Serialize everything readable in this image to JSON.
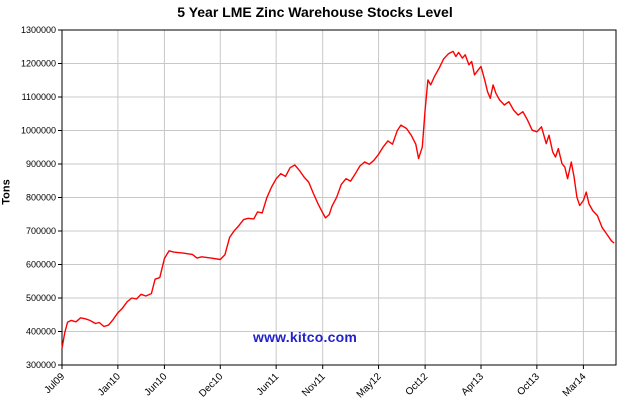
{
  "watermark": {
    "text": "www.kitco.com",
    "color": "#2222cc"
  },
  "chart_data": {
    "type": "line",
    "title": "5 Year LME Zinc Warehouse Stocks Level",
    "xlabel": "",
    "ylabel": "Tons",
    "ylim": [
      300000,
      1300000
    ],
    "y_ticks": [
      300000,
      400000,
      500000,
      600000,
      700000,
      800000,
      900000,
      1000000,
      1100000,
      1200000,
      1300000
    ],
    "x_domain": [
      0,
      59.5
    ],
    "x_note": "x = months since Jul 2009",
    "x_ticks": [
      {
        "pos": 0,
        "label": "Jul09"
      },
      {
        "pos": 6,
        "label": "Jan10"
      },
      {
        "pos": 11,
        "label": "Jun10"
      },
      {
        "pos": 17,
        "label": "Dec10"
      },
      {
        "pos": 23,
        "label": "Jun11"
      },
      {
        "pos": 28,
        "label": "Nov11"
      },
      {
        "pos": 34,
        "label": "May12"
      },
      {
        "pos": 39,
        "label": "Oct12"
      },
      {
        "pos": 45,
        "label": "Apr13"
      },
      {
        "pos": 51,
        "label": "Oct13"
      },
      {
        "pos": 56,
        "label": "Mar14"
      }
    ],
    "grid": true,
    "grid_color": "#c8c8c8",
    "line_color": "#ff0000",
    "legend": "none",
    "series": [
      {
        "name": "LME Zinc Warehouse Stocks (tons)",
        "points": [
          [
            0,
            350000
          ],
          [
            0.3,
            397000
          ],
          [
            0.6,
            428000
          ],
          [
            1,
            433000
          ],
          [
            1.5,
            429000
          ],
          [
            2,
            441000
          ],
          [
            2.5,
            438000
          ],
          [
            3,
            433000
          ],
          [
            3.6,
            424000
          ],
          [
            4,
            427000
          ],
          [
            4.5,
            415000
          ],
          [
            5,
            419000
          ],
          [
            5.5,
            436000
          ],
          [
            6,
            456000
          ],
          [
            6.5,
            470000
          ],
          [
            7,
            489000
          ],
          [
            7.5,
            500000
          ],
          [
            8,
            497000
          ],
          [
            8.5,
            511000
          ],
          [
            9,
            506000
          ],
          [
            9.6,
            513000
          ],
          [
            10,
            556000
          ],
          [
            10.5,
            561000
          ],
          [
            11,
            618000
          ],
          [
            11.5,
            641000
          ],
          [
            12,
            637000
          ],
          [
            13,
            634000
          ],
          [
            14,
            630000
          ],
          [
            14.5,
            619000
          ],
          [
            15,
            623000
          ],
          [
            16,
            619000
          ],
          [
            17,
            615000
          ],
          [
            17.5,
            629000
          ],
          [
            18,
            681000
          ],
          [
            18.5,
            701000
          ],
          [
            19,
            716000
          ],
          [
            19.5,
            734000
          ],
          [
            20,
            738000
          ],
          [
            20.6,
            736000
          ],
          [
            21,
            757000
          ],
          [
            21.5,
            754000
          ],
          [
            22,
            799000
          ],
          [
            22.5,
            831000
          ],
          [
            23,
            856000
          ],
          [
            23.5,
            871000
          ],
          [
            24,
            863000
          ],
          [
            24.5,
            889000
          ],
          [
            25,
            897000
          ],
          [
            25.5,
            881000
          ],
          [
            26,
            861000
          ],
          [
            26.5,
            846000
          ],
          [
            27,
            812000
          ],
          [
            27.5,
            781000
          ],
          [
            28,
            754000
          ],
          [
            28.3,
            739000
          ],
          [
            28.7,
            749000
          ],
          [
            29,
            774000
          ],
          [
            29.5,
            801000
          ],
          [
            30,
            839000
          ],
          [
            30.5,
            856000
          ],
          [
            31,
            849000
          ],
          [
            31.5,
            871000
          ],
          [
            32,
            894000
          ],
          [
            32.5,
            906000
          ],
          [
            33,
            899000
          ],
          [
            33.5,
            911000
          ],
          [
            34,
            929000
          ],
          [
            34.5,
            951000
          ],
          [
            35,
            969000
          ],
          [
            35.5,
            959000
          ],
          [
            36,
            999000
          ],
          [
            36.4,
            1016000
          ],
          [
            37,
            1006000
          ],
          [
            37.5,
            986000
          ],
          [
            38,
            959000
          ],
          [
            38.3,
            916000
          ],
          [
            38.7,
            951000
          ],
          [
            39,
            1061000
          ],
          [
            39.3,
            1151000
          ],
          [
            39.6,
            1136000
          ],
          [
            40,
            1161000
          ],
          [
            40.5,
            1186000
          ],
          [
            41,
            1214000
          ],
          [
            41.5,
            1229000
          ],
          [
            42,
            1236000
          ],
          [
            42.3,
            1221000
          ],
          [
            42.6,
            1233000
          ],
          [
            43,
            1216000
          ],
          [
            43.3,
            1226000
          ],
          [
            43.7,
            1196000
          ],
          [
            44,
            1206000
          ],
          [
            44.3,
            1166000
          ],
          [
            44.7,
            1181000
          ],
          [
            45,
            1191000
          ],
          [
            45.4,
            1151000
          ],
          [
            45.7,
            1116000
          ],
          [
            46,
            1096000
          ],
          [
            46.3,
            1136000
          ],
          [
            46.6,
            1111000
          ],
          [
            47,
            1091000
          ],
          [
            47.5,
            1076000
          ],
          [
            48,
            1086000
          ],
          [
            48.5,
            1061000
          ],
          [
            49,
            1046000
          ],
          [
            49.5,
            1056000
          ],
          [
            50,
            1031000
          ],
          [
            50.5,
            1001000
          ],
          [
            51,
            996000
          ],
          [
            51.5,
            1011000
          ],
          [
            52,
            961000
          ],
          [
            52.3,
            986000
          ],
          [
            52.7,
            936000
          ],
          [
            53,
            921000
          ],
          [
            53.3,
            946000
          ],
          [
            53.7,
            901000
          ],
          [
            54,
            891000
          ],
          [
            54.3,
            856000
          ],
          [
            54.7,
            906000
          ],
          [
            55,
            861000
          ],
          [
            55.3,
            801000
          ],
          [
            55.6,
            776000
          ],
          [
            56,
            791000
          ],
          [
            56.3,
            816000
          ],
          [
            56.6,
            781000
          ],
          [
            57,
            761000
          ],
          [
            57.5,
            746000
          ],
          [
            58,
            711000
          ],
          [
            58.5,
            691000
          ],
          [
            59,
            671000
          ],
          [
            59.3,
            664000
          ]
        ]
      }
    ]
  }
}
